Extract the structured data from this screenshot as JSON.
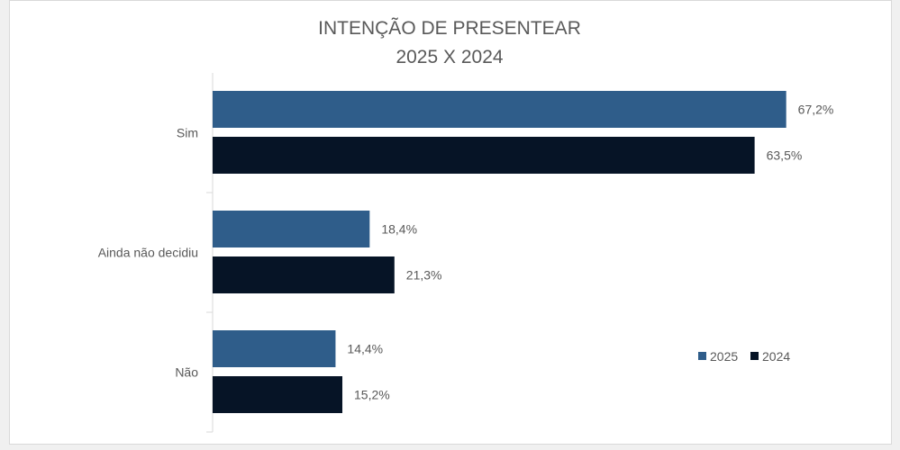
{
  "chart_data": {
    "type": "bar",
    "orientation": "horizontal",
    "title": "INTENÇÃO DE PRESENTEAR",
    "subtitle": "2025 X 2024",
    "categories": [
      "Sim",
      "Ainda não decidiu",
      "Não"
    ],
    "series": [
      {
        "name": "2025",
        "values": [
          67.2,
          18.4,
          14.4
        ],
        "labels": [
          "67,2%",
          "18,4%",
          "14,4%"
        ],
        "color": "#2F5D8A"
      },
      {
        "name": "2024",
        "values": [
          63.5,
          21.3,
          15.2
        ],
        "labels": [
          "63,5%",
          "21,3%",
          "15,2%"
        ],
        "color": "#061426"
      }
    ],
    "xlim": [
      0,
      78
    ],
    "unit": "%",
    "grid": false,
    "legend": "bottom-right"
  }
}
